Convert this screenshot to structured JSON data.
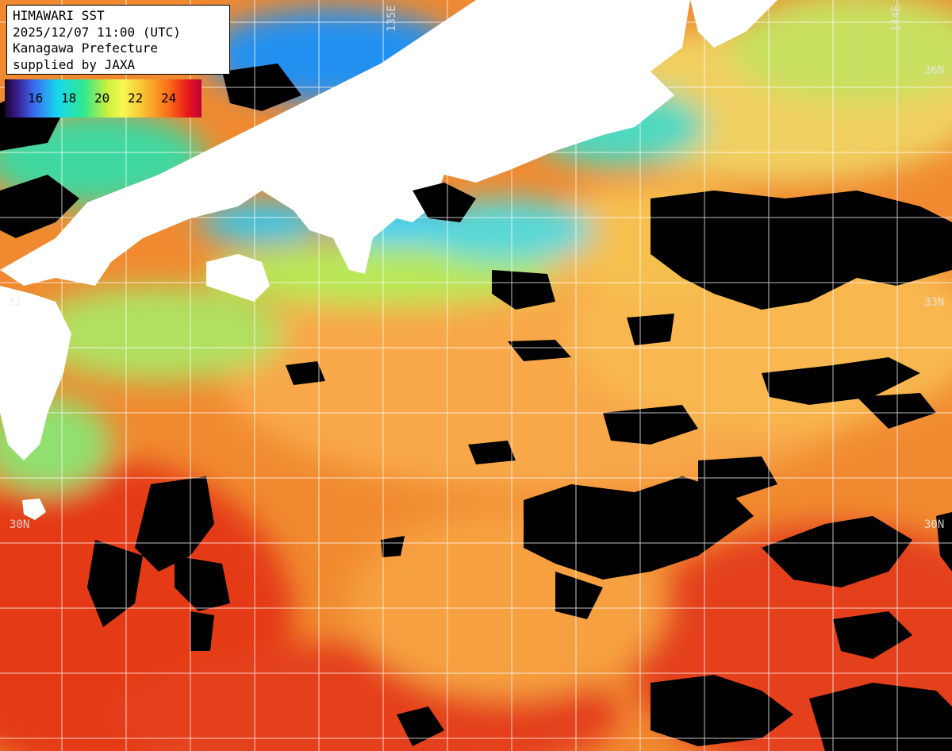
{
  "title": {
    "line1": "HIMAWARI SST",
    "line2": "2025/12/07 11:00 (UTC)",
    "line3": "Kanagawa Prefecture",
    "line4": "supplied by JAXA"
  },
  "legend": {
    "ticks": [
      "16",
      "18",
      "20",
      "22",
      "24"
    ]
  },
  "grid_labels": {
    "lat_36_right": "36N",
    "lat_33_left": "33",
    "lat_33_right": "33N",
    "lat_30_left": "30N",
    "lat_30_right": "30N",
    "lon_top_left": "135E",
    "lon_top_right": "144E"
  },
  "colors": {
    "warm_sea": "#f07a28",
    "hot_sea": "#e43214",
    "mild_sea": "#f8b048",
    "cool_sea": "#b8e858",
    "cold_sea": "#40d0f0",
    "land": "#ffffff",
    "cloud": "#000000",
    "grid": "#ffffff"
  }
}
